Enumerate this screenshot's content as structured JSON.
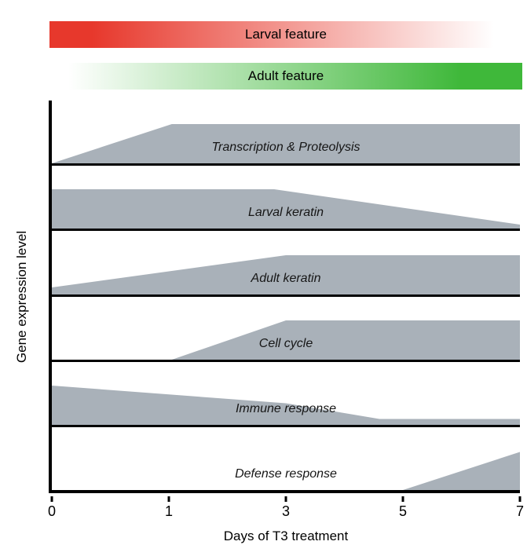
{
  "header": {
    "larval_bar": {
      "label": "Larval feature",
      "color": "#e7382c",
      "fade": "left-solid-to-right-white"
    },
    "adult_bar": {
      "label": "Adult feature",
      "color": "#3fb83a",
      "fade": "left-white-to-right-solid"
    }
  },
  "chart_data": {
    "type": "area",
    "title": "",
    "xlabel": "Days of T3 treatment",
    "ylabel": "Gene expression level",
    "x_ticks": [
      0,
      1,
      3,
      5,
      7
    ],
    "x_tick_spacing": "even",
    "grid": false,
    "legend": false,
    "level_range": [
      0,
      1
    ],
    "fill_color": "#a9b1b9",
    "series": [
      {
        "name": "Transcription & Proteolysis",
        "points": [
          [
            0,
            0
          ],
          [
            1.05,
            1
          ],
          [
            7,
            1
          ]
        ]
      },
      {
        "name": "Larval keratin",
        "points": [
          [
            0,
            1
          ],
          [
            2.8,
            1
          ],
          [
            7,
            0.1
          ]
        ]
      },
      {
        "name": "Adult keratin",
        "points": [
          [
            0,
            0.18
          ],
          [
            3,
            1
          ],
          [
            7,
            1
          ]
        ]
      },
      {
        "name": "Cell cycle",
        "points": [
          [
            0,
            0
          ],
          [
            1.05,
            0
          ],
          [
            3,
            1
          ],
          [
            7,
            1
          ]
        ]
      },
      {
        "name": "Immune response",
        "points": [
          [
            0,
            1
          ],
          [
            3,
            0.55
          ],
          [
            4.6,
            0.15
          ],
          [
            7,
            0.15
          ]
        ]
      },
      {
        "name": "Defense response",
        "points": [
          [
            0,
            0
          ],
          [
            5,
            0
          ],
          [
            7,
            0.97
          ]
        ]
      }
    ]
  }
}
